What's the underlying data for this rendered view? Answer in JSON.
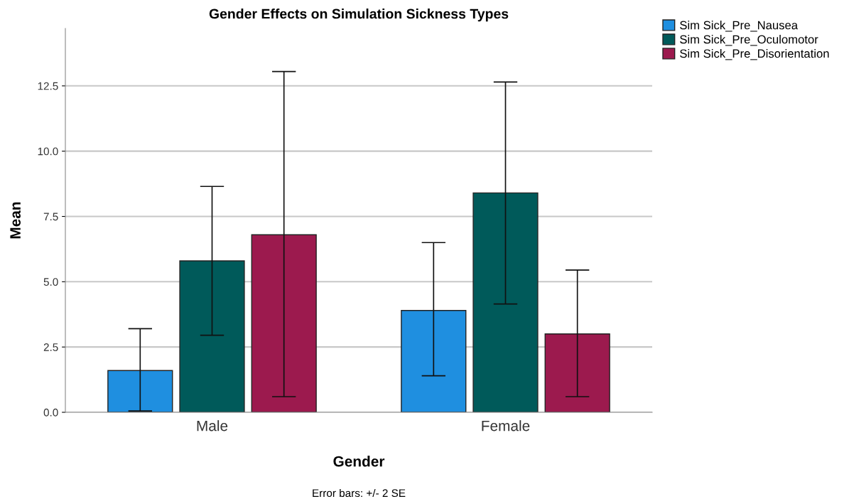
{
  "chart_data": {
    "type": "bar",
    "title": "Gender Effects on Simulation Sickness Types",
    "xlabel": "Gender",
    "ylabel": "Mean",
    "categories": [
      "Male",
      "Female"
    ],
    "series": [
      {
        "name": "Sim Sick_Pre_Nausea",
        "color": "#1f8fe0",
        "values": [
          1.6,
          3.9
        ],
        "errors": [
          [
            0.05,
            3.2
          ],
          [
            1.4,
            6.5
          ]
        ]
      },
      {
        "name": "Sim Sick_Pre_Oculomotor",
        "color": "#005a5a",
        "values": [
          5.8,
          8.4
        ],
        "errors": [
          [
            2.95,
            8.65
          ],
          [
            4.15,
            12.65
          ]
        ]
      },
      {
        "name": "Sim Sick_Pre_Disorientation",
        "color": "#9c1a4e",
        "values": [
          6.8,
          3.0
        ],
        "errors": [
          [
            0.6,
            13.05
          ],
          [
            0.6,
            5.45
          ]
        ]
      }
    ],
    "ylim": [
      0,
      14.7
    ],
    "yticks": [
      {
        "value": 0,
        "label": "0.0"
      },
      {
        "value": 2.5,
        "label": "2.5"
      },
      {
        "value": 5,
        "label": "5.0"
      },
      {
        "value": 7.5,
        "label": "7.5"
      },
      {
        "value": 10,
        "label": "10.0"
      },
      {
        "value": 12.5,
        "label": "12.5"
      }
    ],
    "grid": "y",
    "legend": "top right",
    "annotations": [
      "Error bars: +/- 2 SE"
    ]
  }
}
